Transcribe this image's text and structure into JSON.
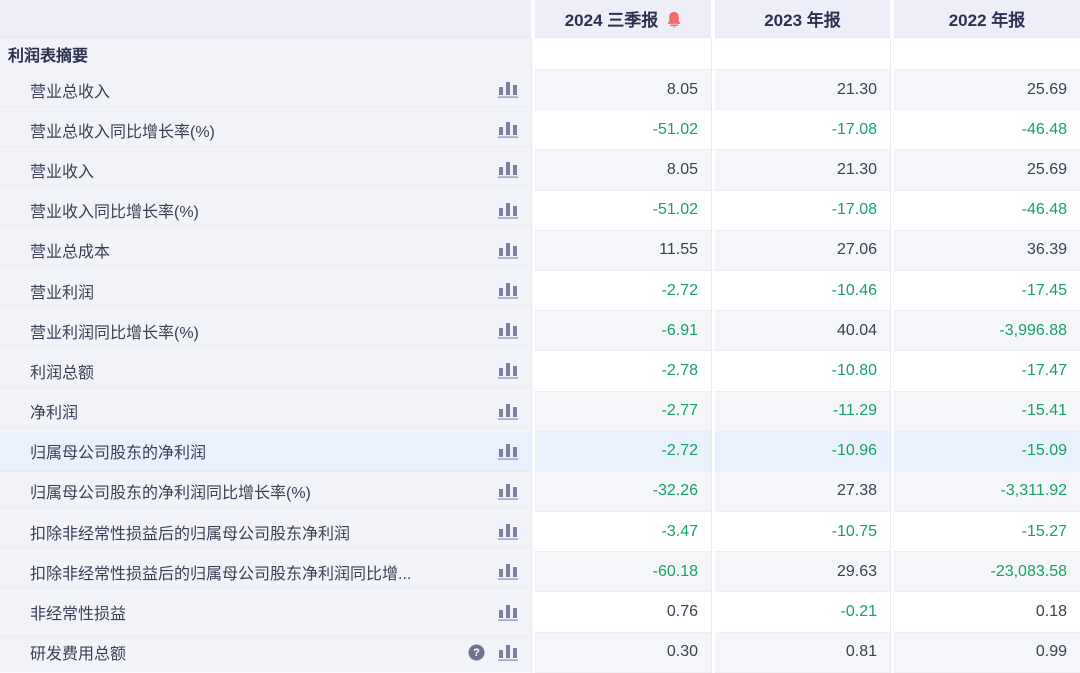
{
  "table": {
    "section_title": "利润表摘要",
    "columns": [
      "2024 三季报",
      "2023 年报",
      "2022 年报"
    ],
    "header_alert_icon": "bell-icon",
    "row_action_icon": "bar-chart-icon",
    "help_icon": "question-icon",
    "rows": [
      {
        "label": "营业总收入",
        "values": [
          "8.05",
          "21.30",
          "25.69"
        ]
      },
      {
        "label": "营业总收入同比增长率(%)",
        "values": [
          "-51.02",
          "-17.08",
          "-46.48"
        ]
      },
      {
        "label": "营业收入",
        "values": [
          "8.05",
          "21.30",
          "25.69"
        ]
      },
      {
        "label": "营业收入同比增长率(%)",
        "values": [
          "-51.02",
          "-17.08",
          "-46.48"
        ]
      },
      {
        "label": "营业总成本",
        "values": [
          "11.55",
          "27.06",
          "36.39"
        ]
      },
      {
        "label": "营业利润",
        "values": [
          "-2.72",
          "-10.46",
          "-17.45"
        ]
      },
      {
        "label": "营业利润同比增长率(%)",
        "values": [
          "-6.91",
          "40.04",
          "-3,996.88"
        ]
      },
      {
        "label": "利润总额",
        "values": [
          "-2.78",
          "-10.80",
          "-17.47"
        ]
      },
      {
        "label": "净利润",
        "values": [
          "-2.77",
          "-11.29",
          "-15.41"
        ]
      },
      {
        "label": "归属母公司股东的净利润",
        "values": [
          "-2.72",
          "-10.96",
          "-15.09"
        ],
        "highlighted": true
      },
      {
        "label": "归属母公司股东的净利润同比增长率(%)",
        "values": [
          "-32.26",
          "27.38",
          "-3,311.92"
        ]
      },
      {
        "label": "扣除非经常性损益后的归属母公司股东净利润",
        "values": [
          "-3.47",
          "-10.75",
          "-15.27"
        ]
      },
      {
        "label": "扣除非经常性损益后的归属母公司股东净利润同比增...",
        "values": [
          "-60.18",
          "29.63",
          "-23,083.58"
        ]
      },
      {
        "label": "非经常性损益",
        "values": [
          "0.76",
          "-0.21",
          "0.18"
        ]
      },
      {
        "label": "研发费用总额",
        "values": [
          "0.30",
          "0.81",
          "0.99"
        ],
        "help_icon": true
      }
    ],
    "colors": {
      "negative_value": "#18a263",
      "value_text": "#3c4153",
      "header_bg": "#edeef7",
      "label_column_bg": "#f2f3f9",
      "stripe_row_bg": "#f5f6fa",
      "highlight_row_bg": "#e8f1fc",
      "alert_red": "#f16b6b",
      "icon_slate": "#7a7fa4"
    }
  }
}
